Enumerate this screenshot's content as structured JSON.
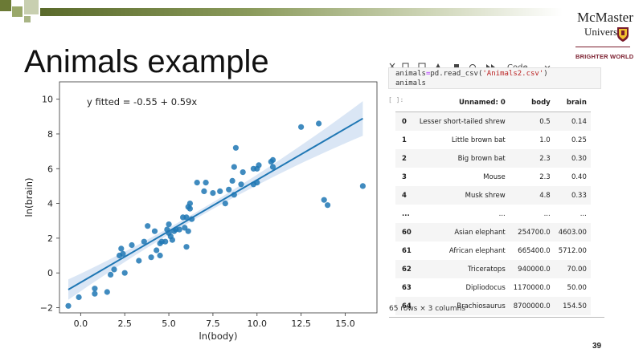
{
  "slide": {
    "title": "Animals example",
    "page_number": "39",
    "logo": {
      "line1": "McMaster",
      "line2": "University",
      "tagline": "BRIGHTER WORLD"
    }
  },
  "notebook": {
    "toolbar_cell_type": "Code",
    "code_line1_var": "animals",
    "code_line1_eq": "=",
    "code_line1_call": "pd.read_csv(",
    "code_line1_arg": "'Animals2.csv'",
    "code_line1_close": ")",
    "code_line2": "animals",
    "output_prompt": "[ ]:",
    "table": {
      "columns": [
        "",
        "Unnamed: 0",
        "body",
        "brain"
      ],
      "rows": [
        [
          "0",
          "Lesser short-tailed shrew",
          "0.5",
          "0.14"
        ],
        [
          "1",
          "Little brown bat",
          "1.0",
          "0.25"
        ],
        [
          "2",
          "Big brown bat",
          "2.3",
          "0.30"
        ],
        [
          "3",
          "Mouse",
          "2.3",
          "0.40"
        ],
        [
          "4",
          "Musk shrew",
          "4.8",
          "0.33"
        ],
        [
          "...",
          "...",
          "...",
          "..."
        ],
        [
          "60",
          "Asian elephant",
          "254700.0",
          "4603.00"
        ],
        [
          "61",
          "African elephant",
          "665400.0",
          "5712.00"
        ],
        [
          "62",
          "Triceratops",
          "940000.0",
          "70.00"
        ],
        [
          "63",
          "Dipliodocus",
          "1170000.0",
          "50.00"
        ],
        [
          "64",
          "Brachiosaurus",
          "8700000.0",
          "154.50"
        ]
      ],
      "caption": "65 rows × 3 columns"
    }
  },
  "chart_data": {
    "type": "scatter",
    "annotation": "y fitted = -0.55 + 0.59x",
    "xlabel": "ln(body)",
    "ylabel": "ln(brain)",
    "xlim": [
      -1.2,
      16.8
    ],
    "ylim": [
      -2.3,
      11.0
    ],
    "xticks": [
      0.0,
      2.5,
      5.0,
      7.5,
      10.0,
      12.5,
      15.0
    ],
    "xtick_labels": [
      "0.0",
      "2.5",
      "5.0",
      "7.5",
      "10.0",
      "12.5",
      "15.0"
    ],
    "yticks": [
      -2,
      0,
      2,
      4,
      6,
      8,
      10
    ],
    "ytick_labels": [
      "−2",
      "0",
      "2",
      "4",
      "6",
      "8",
      "10"
    ],
    "point_color": "#1f77b4",
    "band_color": "#aec7e8",
    "fit_line": {
      "x": [
        -0.7,
        16.0
      ],
      "y": [
        -0.96,
        8.89
      ]
    },
    "points": [
      [
        -0.7,
        -1.9
      ],
      [
        -0.1,
        -1.4
      ],
      [
        0.8,
        -1.2
      ],
      [
        0.8,
        -0.9
      ],
      [
        1.5,
        -1.1
      ],
      [
        1.7,
        -0.1
      ],
      [
        1.9,
        0.2
      ],
      [
        2.2,
        1.0
      ],
      [
        2.3,
        1.4
      ],
      [
        2.4,
        1.1
      ],
      [
        2.5,
        0.0
      ],
      [
        2.9,
        1.6
      ],
      [
        3.3,
        0.7
      ],
      [
        3.6,
        1.8
      ],
      [
        3.8,
        2.7
      ],
      [
        4.0,
        0.9
      ],
      [
        4.2,
        2.4
      ],
      [
        4.3,
        1.3
      ],
      [
        4.5,
        1.0
      ],
      [
        4.5,
        1.7
      ],
      [
        4.6,
        1.8
      ],
      [
        4.8,
        1.8
      ],
      [
        4.9,
        2.5
      ],
      [
        5.0,
        2.3
      ],
      [
        5.0,
        2.8
      ],
      [
        5.1,
        2.1
      ],
      [
        5.2,
        1.9
      ],
      [
        5.3,
        2.4
      ],
      [
        5.4,
        2.5
      ],
      [
        5.6,
        2.5
      ],
      [
        5.8,
        3.2
      ],
      [
        5.9,
        2.6
      ],
      [
        6.0,
        3.2
      ],
      [
        6.0,
        1.5
      ],
      [
        6.1,
        3.8
      ],
      [
        6.1,
        2.4
      ],
      [
        6.2,
        4.0
      ],
      [
        6.3,
        3.1
      ],
      [
        6.2,
        3.7
      ],
      [
        6.6,
        5.2
      ],
      [
        7.1,
        5.2
      ],
      [
        7.0,
        4.7
      ],
      [
        7.5,
        4.6
      ],
      [
        7.9,
        4.7
      ],
      [
        8.2,
        4.0
      ],
      [
        8.4,
        4.8
      ],
      [
        8.6,
        5.3
      ],
      [
        8.7,
        4.5
      ],
      [
        8.7,
        6.1
      ],
      [
        8.8,
        7.2
      ],
      [
        9.1,
        5.1
      ],
      [
        9.2,
        5.8
      ],
      [
        9.8,
        5.1
      ],
      [
        9.8,
        6.0
      ],
      [
        10.0,
        6.0
      ],
      [
        10.0,
        5.2
      ],
      [
        10.1,
        6.2
      ],
      [
        10.8,
        6.4
      ],
      [
        10.9,
        6.1
      ],
      [
        10.9,
        6.5
      ],
      [
        12.5,
        8.4
      ],
      [
        13.5,
        8.6
      ],
      [
        13.8,
        4.2
      ],
      [
        14.0,
        3.9
      ],
      [
        16.0,
        5.0
      ]
    ]
  }
}
